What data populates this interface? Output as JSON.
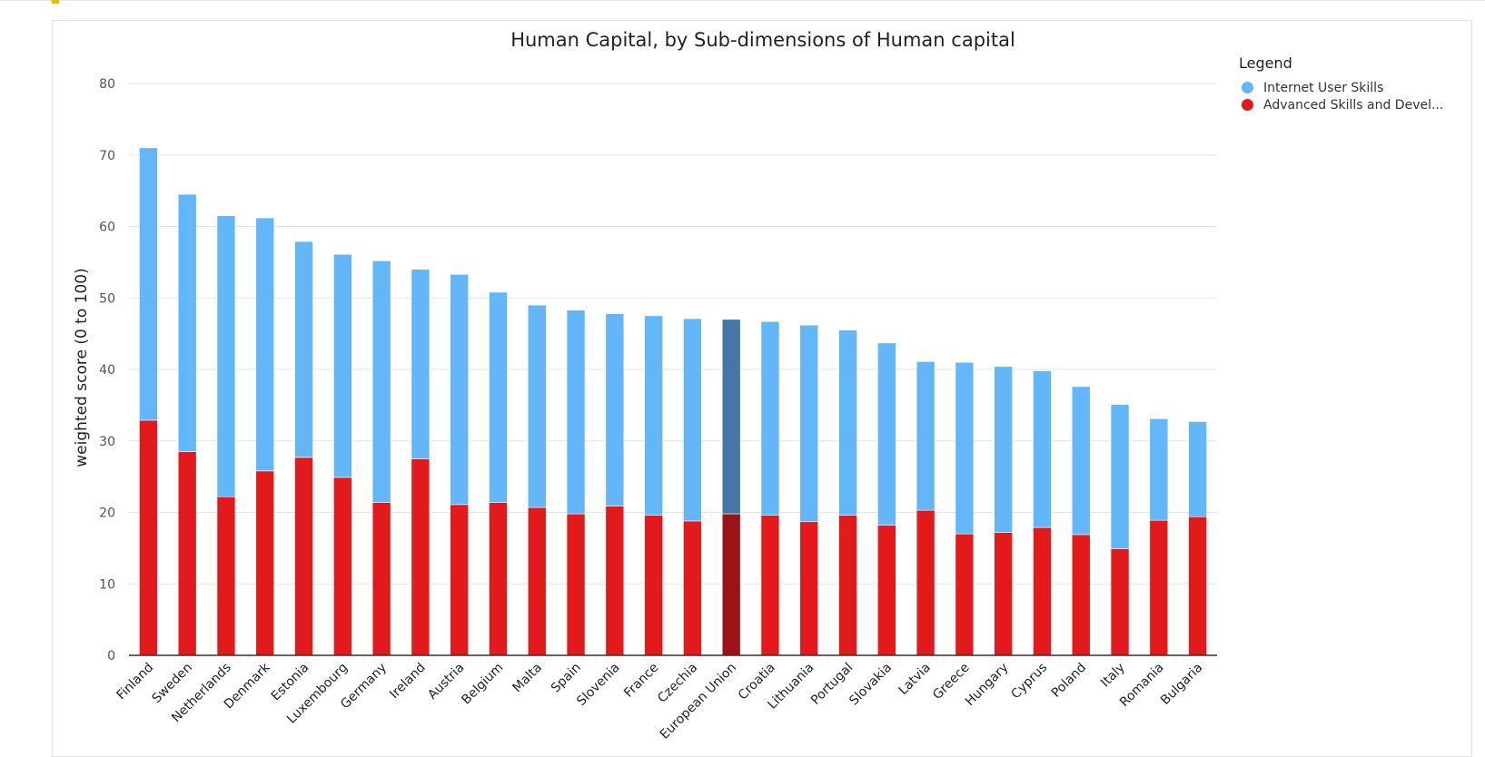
{
  "chart_data": {
    "type": "bar",
    "stacked": true,
    "title": "Human Capital, by Sub-dimensions of Human capital",
    "xlabel": "",
    "ylabel": "weighted score (0 to 100)",
    "ylim": [
      0,
      80
    ],
    "yticks": [
      "0",
      "10",
      "20",
      "30",
      "40",
      "50",
      "60",
      "70",
      "80"
    ],
    "grid": true,
    "legend_position": "right",
    "categories": [
      "Finland",
      "Sweden",
      "Netherlands",
      "Denmark",
      "Estonia",
      "Luxembourg",
      "Germany",
      "Ireland",
      "Austria",
      "Belgium",
      "Malta",
      "Spain",
      "Slovenia",
      "France",
      "Czechia",
      "European Union",
      "Croatia",
      "Lithuania",
      "Portugal",
      "Slovakia",
      "Latvia",
      "Greece",
      "Hungary",
      "Cyprus",
      "Poland",
      "Italy",
      "Romania",
      "Bulgaria"
    ],
    "highlight_category": "European Union",
    "series": [
      {
        "name": "Advanced Skills and Devel...",
        "color": "#e31a1c",
        "highlight_color": "#9b1315",
        "values": [
          32.9,
          28.5,
          22.2,
          25.8,
          27.7,
          24.9,
          21.4,
          27.5,
          21.1,
          21.4,
          20.7,
          19.8,
          20.9,
          19.6,
          18.8,
          19.8,
          19.6,
          18.7,
          19.6,
          18.2,
          20.3,
          17.0,
          17.2,
          17.9,
          16.9,
          14.9,
          18.9,
          19.4
        ]
      },
      {
        "name": "Internet User Skills",
        "color": "#63b6f8",
        "highlight_color": "#4378a6",
        "values": [
          38.1,
          36.0,
          39.3,
          35.4,
          30.2,
          31.2,
          33.8,
          26.5,
          32.2,
          29.4,
          28.3,
          28.5,
          26.9,
          27.9,
          28.3,
          27.2,
          27.1,
          27.5,
          25.9,
          25.5,
          20.8,
          24.0,
          23.2,
          21.9,
          20.7,
          20.2,
          14.2,
          13.3
        ]
      }
    ],
    "legend": {
      "title": "Legend",
      "items": [
        {
          "label": "Internet User Skills",
          "color": "#63b6f8"
        },
        {
          "label": "Advanced Skills and Devel...",
          "color": "#e31a1c"
        }
      ]
    }
  }
}
